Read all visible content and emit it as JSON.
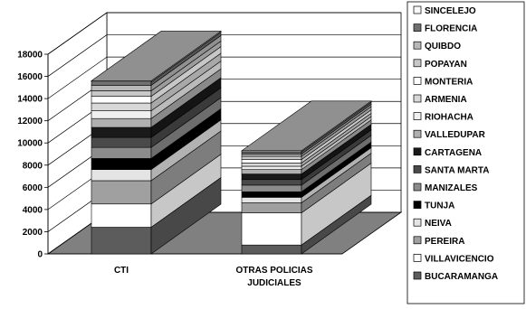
{
  "chart_data": {
    "type": "bar",
    "stacked": true,
    "three_d": true,
    "title": "",
    "xlabel": "",
    "ylabel": "",
    "ylim": [
      0,
      18000
    ],
    "yticks": [
      0,
      2000,
      4000,
      6000,
      8000,
      10000,
      12000,
      14000,
      16000,
      18000
    ],
    "grid": true,
    "legend_position": "right",
    "categories": [
      "CTI",
      "OTRAS POLICIAS JUDICIALES"
    ],
    "series": [
      {
        "name": "BUCARAMANGA",
        "values": [
          2400,
          800
        ],
        "color": "#5c5c5c"
      },
      {
        "name": "VILLAVICENCIO",
        "values": [
          2100,
          2900
        ],
        "color": "#ffffff"
      },
      {
        "name": "PEREIRA",
        "values": [
          2100,
          900
        ],
        "color": "#a0a0a0"
      },
      {
        "name": "NEIVA",
        "values": [
          1000,
          500
        ],
        "color": "#e4e4e4"
      },
      {
        "name": "TUNJA",
        "values": [
          1000,
          500
        ],
        "color": "#000000"
      },
      {
        "name": "MANIZALES",
        "values": [
          1000,
          600
        ],
        "color": "#8c8c8c"
      },
      {
        "name": "SANTA MARTA",
        "values": [
          900,
          500
        ],
        "color": "#4a4a4a"
      },
      {
        "name": "CARTAGENA",
        "values": [
          900,
          500
        ],
        "color": "#1a1a1a"
      },
      {
        "name": "VALLEDUPAR",
        "values": [
          800,
          400
        ],
        "color": "#b0b0b0"
      },
      {
        "name": "RIOHACHA",
        "values": [
          700,
          300
        ],
        "color": "#f0f0f0"
      },
      {
        "name": "ARMENIA",
        "values": [
          700,
          300
        ],
        "color": "#d8d8d8"
      },
      {
        "name": "MONTERIA",
        "values": [
          600,
          300
        ],
        "color": "#ffffff"
      },
      {
        "name": "POPAYAN",
        "values": [
          500,
          300
        ],
        "color": "#c8c8c8"
      },
      {
        "name": "QUIBDO",
        "values": [
          500,
          200
        ],
        "color": "#b8b8b8"
      },
      {
        "name": "FLORENCIA",
        "values": [
          300,
          200
        ],
        "color": "#707070"
      },
      {
        "name": "SINCELEJO",
        "values": [
          100,
          100
        ],
        "color": "#f8f8f8"
      }
    ],
    "legend_order": [
      "SINCELEJO",
      "FLORENCIA",
      "QUIBDO",
      "POPAYAN",
      "MONTERIA",
      "ARMENIA",
      "RIOHACHA",
      "VALLEDUPAR",
      "CARTAGENA",
      "SANTA MARTA",
      "MANIZALES",
      "TUNJA",
      "NEIVA",
      "PEREIRA",
      "VILLAVICENCIO",
      "BUCARAMANGA"
    ],
    "colors": {
      "wall": "#ffffff",
      "floor": "#808080",
      "grid": "#000000",
      "top_face": "#909090"
    }
  }
}
